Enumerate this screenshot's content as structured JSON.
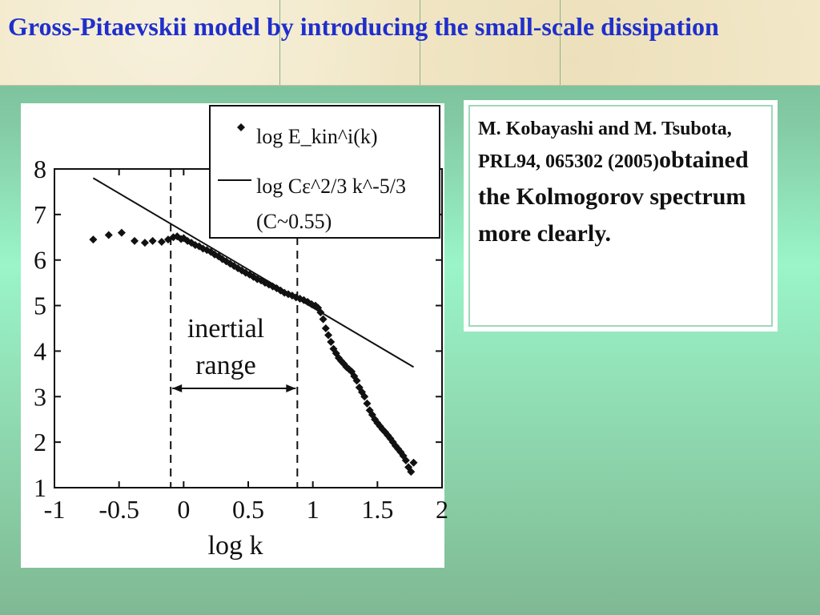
{
  "slide": {
    "title": "Gross-Pitaevskii model by introducing the small-scale dissipation",
    "citation": "M. Kobayashi and M. Tsubota, PRL94, 065302 (2005)",
    "statement": "obtained the Kolmogorov spectrum more clearly."
  },
  "chart_data": {
    "type": "scatter",
    "xlabel": "log k",
    "ylabel": "",
    "xlim": [
      -1,
      2
    ],
    "ylim": [
      1,
      8
    ],
    "xticks": [
      "-1",
      "-0.5",
      "0",
      "0.5",
      "1",
      "1.5",
      "2"
    ],
    "yticks": [
      "1",
      "2",
      "3",
      "4",
      "5",
      "6",
      "7",
      "8"
    ],
    "legend_position": "top-right",
    "legend": {
      "scatter_label": "log E_kin^i(k)",
      "line_label": "log Cε^2/3 k^-5/3",
      "constant": "(C~0.55)"
    },
    "annotation": {
      "text_line1": "inertial",
      "text_line2": "range",
      "x_start": -0.1,
      "x_end": 0.88
    },
    "series": [
      {
        "kind": "points",
        "x": [
          -0.7,
          -0.58,
          -0.48,
          -0.38,
          -0.3,
          -0.24,
          -0.17,
          -0.12,
          -0.08,
          -0.05,
          -0.02,
          0.0,
          0.03,
          0.06,
          0.09,
          0.12,
          0.15,
          0.18,
          0.21,
          0.24,
          0.27,
          0.3,
          0.33,
          0.36,
          0.39,
          0.42,
          0.45,
          0.48,
          0.51,
          0.54,
          0.57,
          0.6,
          0.63,
          0.66,
          0.69,
          0.72,
          0.75,
          0.78,
          0.81,
          0.84,
          0.87,
          0.9,
          0.93,
          0.96,
          0.99,
          1.02,
          1.04,
          1.06,
          1.08,
          1.1,
          1.12,
          1.14,
          1.16,
          1.18,
          1.2,
          1.22,
          1.24,
          1.26,
          1.28,
          1.3,
          1.32,
          1.34,
          1.36,
          1.38,
          1.4,
          1.42,
          1.44,
          1.46,
          1.48,
          1.5,
          1.52,
          1.54,
          1.56,
          1.58,
          1.6,
          1.62,
          1.64,
          1.66,
          1.68,
          1.7,
          1.72,
          1.74,
          1.76,
          1.78
        ],
        "y": [
          6.45,
          6.55,
          6.6,
          6.42,
          6.38,
          6.42,
          6.4,
          6.45,
          6.5,
          6.52,
          6.46,
          6.48,
          6.42,
          6.38,
          6.33,
          6.3,
          6.25,
          6.22,
          6.18,
          6.12,
          6.08,
          6.02,
          5.97,
          5.92,
          5.87,
          5.82,
          5.77,
          5.72,
          5.68,
          5.63,
          5.58,
          5.55,
          5.5,
          5.46,
          5.42,
          5.38,
          5.33,
          5.28,
          5.25,
          5.22,
          5.18,
          5.15,
          5.12,
          5.08,
          5.03,
          5.0,
          4.95,
          4.85,
          4.7,
          4.5,
          4.35,
          4.2,
          4.05,
          3.95,
          3.85,
          3.78,
          3.72,
          3.65,
          3.6,
          3.55,
          3.45,
          3.35,
          3.2,
          3.1,
          3.0,
          2.85,
          2.7,
          2.6,
          2.5,
          2.42,
          2.35,
          2.28,
          2.22,
          2.15,
          2.08,
          2.0,
          1.92,
          1.85,
          1.78,
          1.7,
          1.6,
          1.45,
          1.35,
          1.55
        ]
      },
      {
        "kind": "line",
        "x": [
          -0.7,
          1.78
        ],
        "y": [
          7.8,
          3.65
        ]
      }
    ]
  }
}
